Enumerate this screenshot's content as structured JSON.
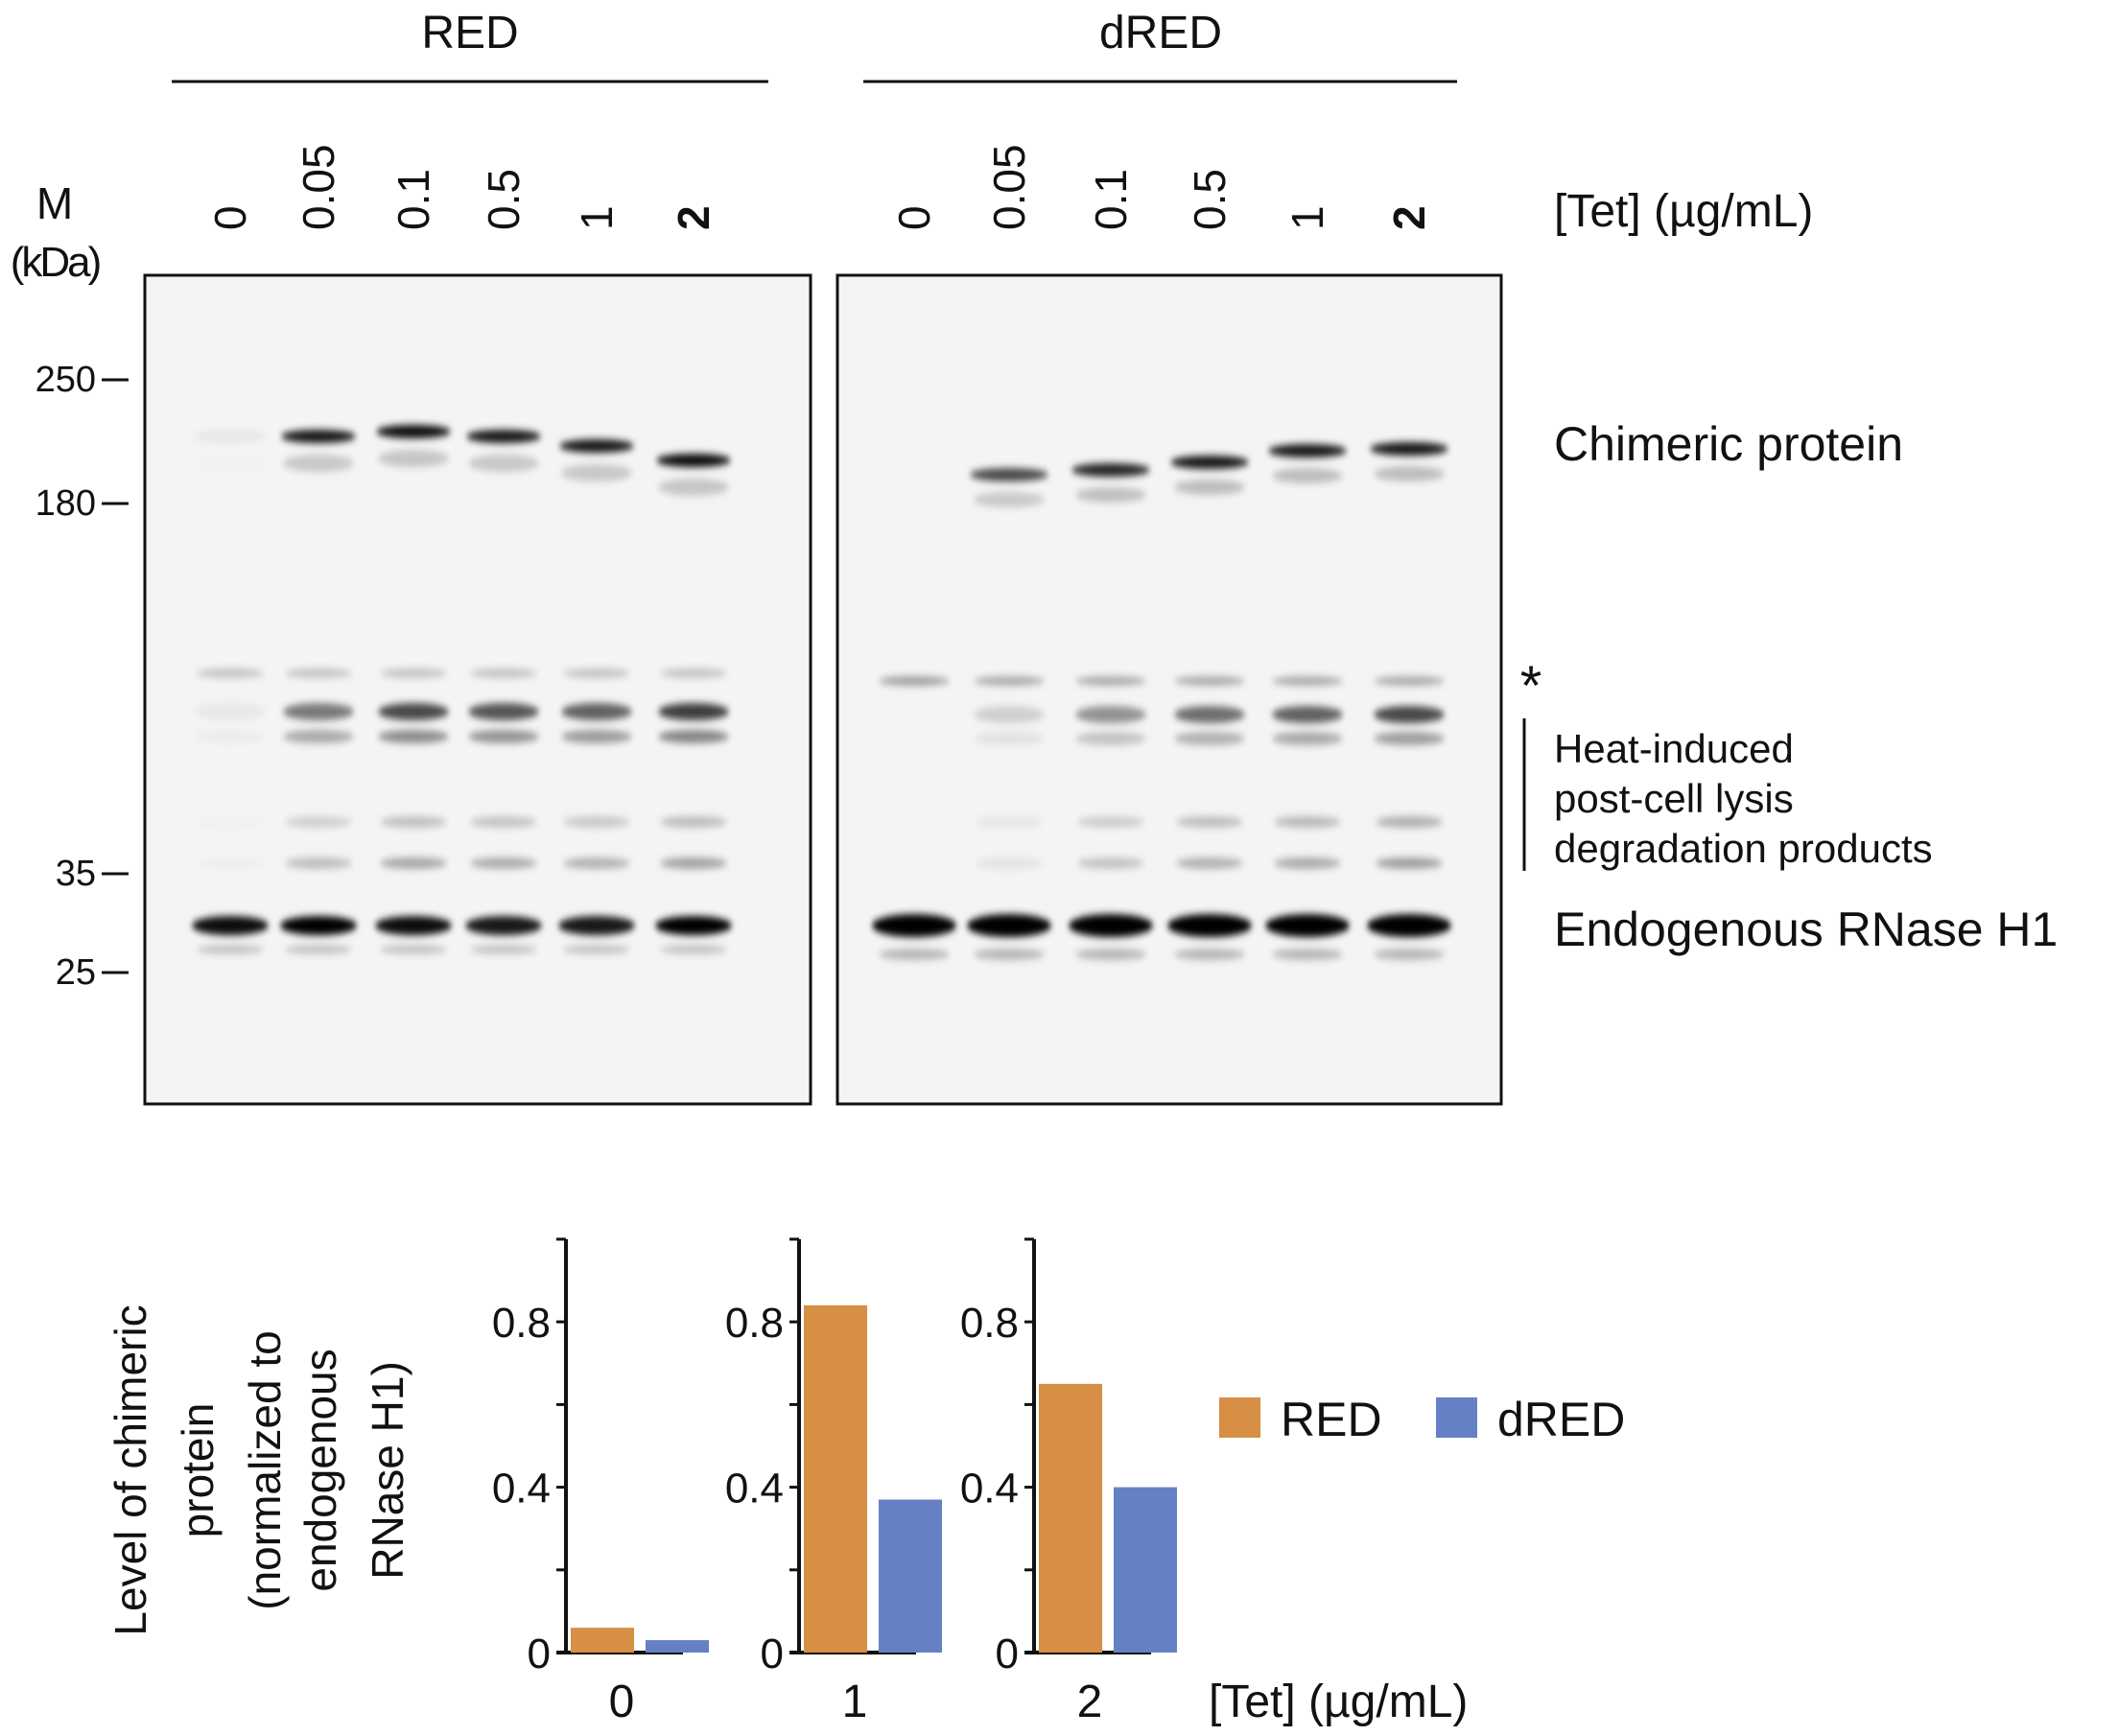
{
  "blot": {
    "groups": [
      "RED",
      "dRED"
    ],
    "lanes": [
      "0",
      "0.05",
      "0.1",
      "0.5",
      "1",
      "2"
    ],
    "tet_label": "[Tet] (µg/mL)",
    "marker_title": "M",
    "marker_unit": "(kDa)",
    "markers": [
      "250",
      "180",
      "35",
      "25"
    ],
    "labels": {
      "chimeric": "Chimeric protein",
      "asterisk": "*",
      "heat1": "Heat-induced",
      "heat2": "post-cell lysis",
      "heat3": "degradation products",
      "endogenous": "Endogenous RNase H1"
    }
  },
  "chart_data": {
    "type": "bar",
    "ylabel_lines": [
      "Level of chimeric",
      "protein",
      "(normalized to",
      "endogenous",
      "RNase H1)"
    ],
    "xlabel": "[Tet] (µg/mL)",
    "categories": [
      "0",
      "1",
      "2"
    ],
    "yticks": [
      "0",
      "0.4",
      "0.8"
    ],
    "ylim": [
      0,
      1.0
    ],
    "series": [
      {
        "name": "RED",
        "color": "#d68f45",
        "values": [
          0.06,
          0.84,
          0.65
        ]
      },
      {
        "name": "dRED",
        "color": "#6580c4",
        "values": [
          0.03,
          0.37,
          0.4
        ]
      }
    ],
    "legend": "right",
    "grid": false
  }
}
